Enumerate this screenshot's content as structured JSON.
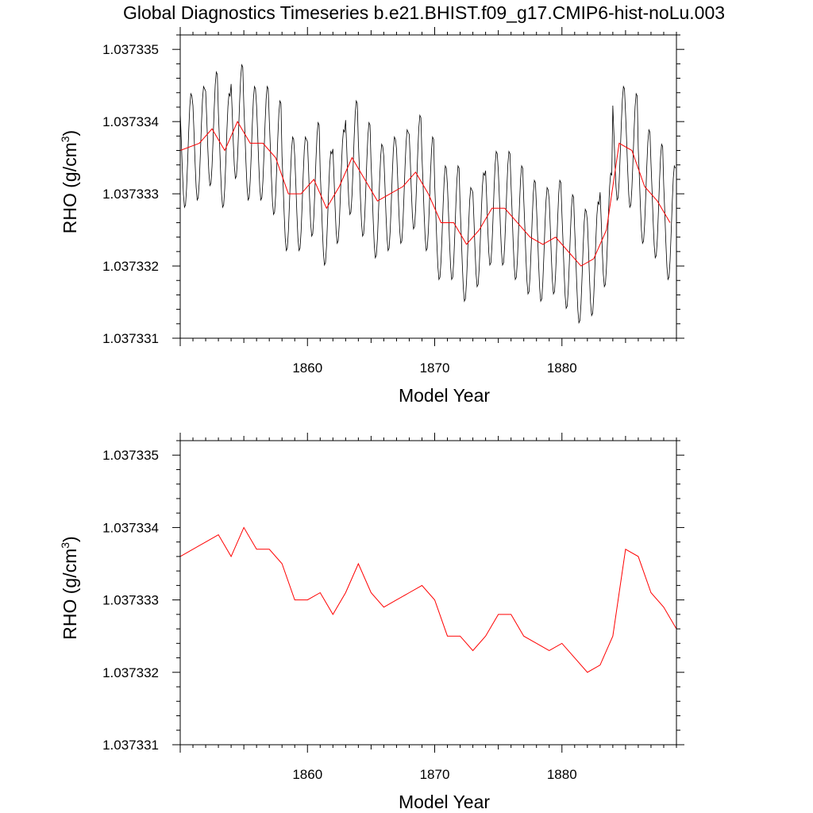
{
  "title": "Global Diagnostics Timeseries b.e21.BHIST.f09_g17.CMIP6-hist-noLu.003",
  "colors": {
    "monthly": "#000000",
    "annual": "#ff0000",
    "frame": "#000000"
  },
  "chart_data": [
    {
      "type": "line",
      "xlabel": "Model Year",
      "ylabel_main": "RHO (g/cm",
      "ylabel_sup": "3",
      "ylabel_close": ")",
      "xlim": [
        1850,
        1889
      ],
      "ylim": [
        1.037331,
        1.0373352
      ],
      "xticks": [
        1860,
        1870,
        1880
      ],
      "xtick_labels": [
        "1860",
        "1870",
        "1880"
      ],
      "yticks": [
        1.037331,
        1.037332,
        1.037333,
        1.037334,
        1.037335
      ],
      "ytick_labels": [
        "1.037331",
        "1.037332",
        "1.037333",
        "1.037334",
        "1.037335"
      ],
      "series": [
        {
          "style": "monthly",
          "seasonal_amplitude": 8e-07,
          "annual_means": [
            1.0373336,
            1.0373337,
            1.0373339,
            1.0373336,
            1.037334,
            1.0373337,
            1.0373337,
            1.0373335,
            1.037333,
            1.037333,
            1.0373332,
            1.0373328,
            1.0373331,
            1.0373335,
            1.0373332,
            1.0373329,
            1.037333,
            1.0373331,
            1.0373333,
            1.037333,
            1.0373326,
            1.0373326,
            1.0373323,
            1.0373325,
            1.0373328,
            1.0373328,
            1.0373326,
            1.0373324,
            1.0373323,
            1.0373324,
            1.0373322,
            1.037332,
            1.0373321,
            1.0373325,
            1.0373337,
            1.0373336,
            1.0373331,
            1.0373329,
            1.0373326
          ]
        },
        {
          "style": "annual",
          "x": [
            1850,
            1851.5,
            1852.5,
            1853.5,
            1854.5,
            1855.5,
            1856.5,
            1857.5,
            1858.5,
            1859.5,
            1860.5,
            1861.5,
            1862.5,
            1863.5,
            1864.5,
            1865.5,
            1866.5,
            1867.5,
            1868.5,
            1869.5,
            1870.5,
            1871.5,
            1872.5,
            1873.5,
            1874.5,
            1875.5,
            1876.5,
            1877.5,
            1878.5,
            1879.5,
            1880.5,
            1881.5,
            1882.5,
            1883.5,
            1884.5,
            1885.5,
            1886.5,
            1887.5,
            1888.5
          ],
          "y": [
            1.0373336,
            1.0373337,
            1.0373339,
            1.0373336,
            1.037334,
            1.0373337,
            1.0373337,
            1.0373335,
            1.037333,
            1.037333,
            1.0373332,
            1.0373328,
            1.0373331,
            1.0373335,
            1.0373332,
            1.0373329,
            1.037333,
            1.0373331,
            1.0373333,
            1.037333,
            1.0373326,
            1.0373326,
            1.0373323,
            1.0373325,
            1.0373328,
            1.0373328,
            1.0373326,
            1.0373324,
            1.0373323,
            1.0373324,
            1.0373322,
            1.037332,
            1.0373321,
            1.0373325,
            1.0373337,
            1.0373336,
            1.0373331,
            1.0373329,
            1.0373326
          ]
        }
      ]
    },
    {
      "type": "line",
      "xlabel": "Model Year",
      "ylabel_main": "RHO (g/cm",
      "ylabel_sup": "3",
      "ylabel_close": ")",
      "xlim": [
        1850,
        1889
      ],
      "ylim": [
        1.037331,
        1.0373352
      ],
      "xticks": [
        1860,
        1870,
        1880
      ],
      "xtick_labels": [
        "1860",
        "1870",
        "1880"
      ],
      "yticks": [
        1.037331,
        1.037332,
        1.037333,
        1.037334,
        1.037335
      ],
      "ytick_labels": [
        "1.037331",
        "1.037332",
        "1.037333",
        "1.037334",
        "1.037335"
      ],
      "series": [
        {
          "style": "annual",
          "x": [
            1850,
            1852,
            1853,
            1854,
            1855,
            1856,
            1857,
            1858,
            1859,
            1860,
            1861,
            1862,
            1863,
            1864,
            1865,
            1866,
            1867,
            1868,
            1869,
            1870,
            1871,
            1872,
            1873,
            1874,
            1875,
            1876,
            1877,
            1878,
            1879,
            1880,
            1881,
            1882,
            1883,
            1884,
            1885,
            1886,
            1887,
            1888,
            1889
          ],
          "y": [
            1.0373336,
            1.0373338,
            1.0373339,
            1.0373336,
            1.037334,
            1.0373337,
            1.0373337,
            1.0373335,
            1.037333,
            1.037333,
            1.0373331,
            1.0373328,
            1.0373331,
            1.0373335,
            1.0373331,
            1.0373329,
            1.037333,
            1.0373331,
            1.0373332,
            1.037333,
            1.0373325,
            1.0373325,
            1.0373323,
            1.0373325,
            1.0373328,
            1.0373328,
            1.0373325,
            1.0373324,
            1.0373323,
            1.0373324,
            1.0373322,
            1.037332,
            1.0373321,
            1.0373325,
            1.0373337,
            1.0373336,
            1.0373331,
            1.0373329,
            1.0373326
          ]
        }
      ]
    }
  ]
}
